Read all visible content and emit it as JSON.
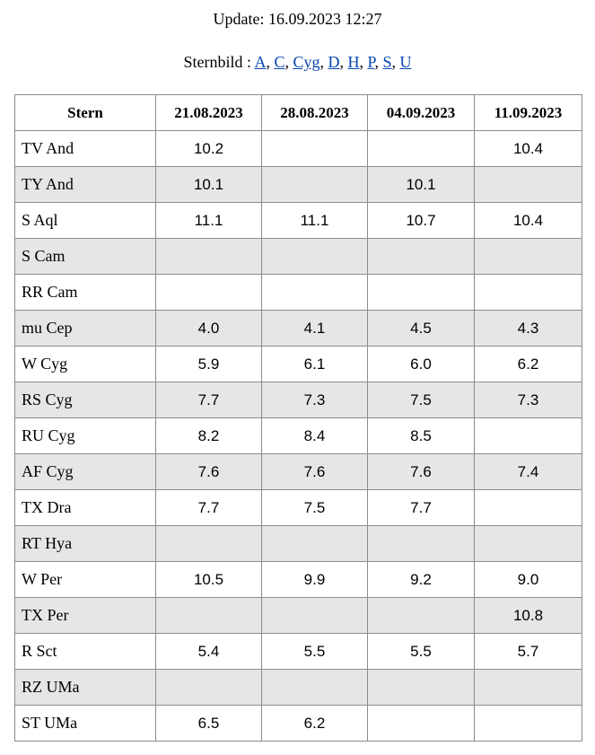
{
  "update": "Update: 16.09.2023 12:27",
  "nav": {
    "label": "Sternbild :",
    "separator": ",",
    "links": [
      "A",
      "C",
      "Cyg",
      "D",
      "H",
      "P",
      "S",
      "U"
    ]
  },
  "table": {
    "header": [
      "Stern",
      "21.08.2023",
      "28.08.2023",
      "04.09.2023",
      "11.09.2023"
    ],
    "rows": [
      [
        "TV And",
        "10.2",
        null,
        null,
        "10.4"
      ],
      [
        "TY And",
        "10.1",
        null,
        "10.1",
        null
      ],
      [
        "S Aql",
        "11.1",
        "11.1",
        "10.7",
        "10.4"
      ],
      [
        "S Cam",
        null,
        null,
        null,
        null
      ],
      [
        "RR Cam",
        null,
        null,
        null,
        null
      ],
      [
        "mu Cep",
        "4.0",
        "4.1",
        "4.5",
        "4.3"
      ],
      [
        "W Cyg",
        "5.9",
        "6.1",
        "6.0",
        "6.2"
      ],
      [
        "RS Cyg",
        "7.7",
        "7.3",
        "7.5",
        "7.3"
      ],
      [
        "RU Cyg",
        "8.2",
        "8.4",
        "8.5",
        null
      ],
      [
        "AF Cyg",
        "7.6",
        "7.6",
        "7.6",
        "7.4"
      ],
      [
        "TX Dra",
        "7.7",
        "7.5",
        "7.7",
        null
      ],
      [
        "RT Hya",
        null,
        null,
        null,
        null
      ],
      [
        "W Per",
        "10.5",
        "9.9",
        "9.2",
        "9.0"
      ],
      [
        "TX Per",
        null,
        null,
        null,
        "10.8"
      ],
      [
        "R Sct",
        "5.4",
        "5.5",
        "5.5",
        "5.7"
      ],
      [
        "RZ UMa",
        null,
        null,
        null,
        null
      ],
      [
        "ST UMa",
        "6.5",
        "6.2",
        null,
        null
      ]
    ]
  }
}
